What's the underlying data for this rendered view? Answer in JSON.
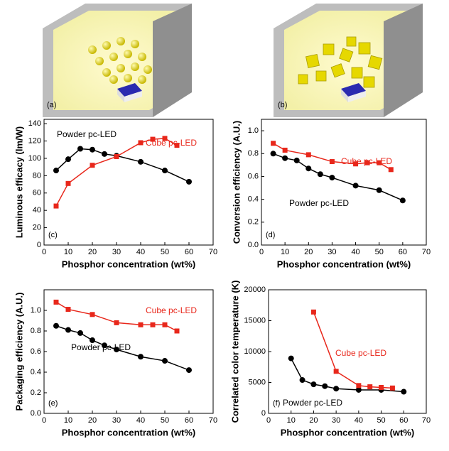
{
  "panels": {
    "a": "(a)",
    "b": "(b)"
  },
  "chart_data": [
    {
      "type": "line",
      "panel_label": "(c)",
      "xlabel": "Phosphor concentration (wt%)",
      "ylabel": "Luminous efficacy (lm/W)",
      "xlim": [
        0,
        70
      ],
      "xticks": [
        0,
        10,
        20,
        30,
        40,
        50,
        60,
        70
      ],
      "ylim": [
        0,
        145
      ],
      "yticks": [
        0,
        20,
        40,
        60,
        80,
        100,
        120,
        140
      ],
      "series": [
        {
          "name": "Powder pc-LED",
          "color": "#000000",
          "marker": "circle",
          "x": [
            5,
            10,
            15,
            20,
            25,
            30,
            40,
            50,
            60
          ],
          "values": [
            86,
            99,
            111,
            110,
            105,
            103,
            96,
            86,
            73
          ]
        },
        {
          "name": "Cube pc-LED",
          "color": "#e8271b",
          "marker": "square",
          "x": [
            5,
            10,
            20,
            30,
            40,
            45,
            50,
            55
          ],
          "values": [
            45,
            71,
            92,
            102,
            118,
            122,
            123,
            115
          ]
        }
      ]
    },
    {
      "type": "line",
      "panel_label": "(d)",
      "xlabel": "Phosphor concentration (wt%)",
      "ylabel": "Conversion efficiency (A.U.)",
      "xlim": [
        0,
        70
      ],
      "xticks": [
        0,
        10,
        20,
        30,
        40,
        50,
        60,
        70
      ],
      "ylim": [
        0,
        1.1
      ],
      "yticks": [
        {
          "value": 0,
          "label": "0.0"
        },
        0.2,
        0.4,
        0.6,
        0.8,
        {
          "value": 1,
          "label": "1.0"
        }
      ],
      "series": [
        {
          "name": "Powder pc-LED",
          "color": "#000000",
          "marker": "circle",
          "x": [
            5,
            10,
            15,
            20,
            25,
            30,
            40,
            50,
            60
          ],
          "values": [
            0.8,
            0.76,
            0.74,
            0.67,
            0.62,
            0.59,
            0.52,
            0.48,
            0.39
          ]
        },
        {
          "name": "Cube pc-LED",
          "color": "#e8271b",
          "marker": "square",
          "x": [
            5,
            10,
            20,
            30,
            40,
            45,
            50,
            55
          ],
          "values": [
            0.89,
            0.83,
            0.79,
            0.73,
            0.71,
            0.72,
            0.72,
            0.66
          ]
        }
      ]
    },
    {
      "type": "line",
      "panel_label": "(e)",
      "xlabel": "Phosphor concentration (wt%)",
      "ylabel": "Packaging efficiency (A.U.)",
      "xlim": [
        0,
        70
      ],
      "xticks": [
        0,
        10,
        20,
        30,
        40,
        50,
        60,
        70
      ],
      "ylim": [
        0,
        1.2
      ],
      "yticks": [
        {
          "value": 0,
          "label": "0.0"
        },
        0.2,
        0.4,
        0.6,
        0.8,
        {
          "value": 1,
          "label": "1.0"
        }
      ],
      "series": [
        {
          "name": "Powder pc-LED",
          "color": "#000000",
          "marker": "circle",
          "x": [
            5,
            10,
            15,
            20,
            25,
            30,
            40,
            50,
            60
          ],
          "values": [
            0.85,
            0.81,
            0.78,
            0.71,
            0.66,
            0.62,
            0.55,
            0.51,
            0.42
          ]
        },
        {
          "name": "Cube pc-LED",
          "color": "#e8271b",
          "marker": "square",
          "x": [
            5,
            10,
            20,
            30,
            40,
            45,
            50,
            55
          ],
          "values": [
            1.08,
            1.01,
            0.96,
            0.88,
            0.86,
            0.86,
            0.86,
            0.8
          ]
        }
      ]
    },
    {
      "type": "line",
      "panel_label": "(f)",
      "xlabel": "Phosphor concentration (wt%)",
      "ylabel": "Correlated color temperature (K)",
      "xlim": [
        0,
        70
      ],
      "xticks": [
        0,
        10,
        20,
        30,
        40,
        50,
        60,
        70
      ],
      "ylim": [
        0,
        20000
      ],
      "yticks": [
        0,
        5000,
        10000,
        15000,
        20000
      ],
      "series": [
        {
          "name": "Powder pc-LED",
          "color": "#000000",
          "marker": "circle",
          "x": [
            10,
            15,
            20,
            25,
            30,
            40,
            50,
            60
          ],
          "values": [
            8900,
            5400,
            4700,
            4400,
            4000,
            3800,
            3800,
            3500
          ]
        },
        {
          "name": "Cube pc-LED",
          "color": "#e8271b",
          "marker": "square",
          "x": [
            20,
            30,
            40,
            45,
            50,
            55
          ],
          "values": [
            16400,
            6800,
            4500,
            4300,
            4200,
            4100
          ]
        }
      ]
    }
  ]
}
